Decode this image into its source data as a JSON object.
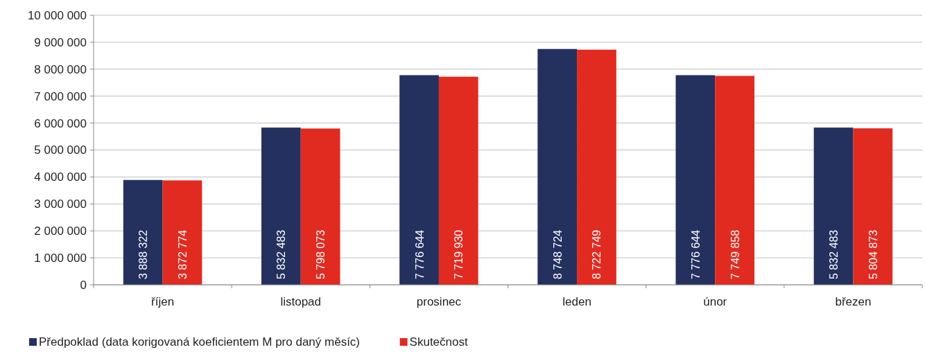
{
  "chart_data": {
    "type": "bar",
    "categories": [
      "říjen",
      "listopad",
      "prosinec",
      "leden",
      "únor",
      "březen"
    ],
    "series": [
      {
        "name": "Předpoklad (data korigovaná koeficientem M pro daný měsíc)",
        "color": "#24305e",
        "values": [
          3888322,
          5832483,
          7776644,
          8748724,
          7776644,
          5832483
        ]
      },
      {
        "name": "Skutečnost",
        "color": "#e12b21",
        "values": [
          3872774,
          5798073,
          7719930,
          8722749,
          7749858,
          5804873
        ]
      }
    ],
    "ylim": [
      0,
      10000000
    ],
    "yticks": [
      {
        "value": 0,
        "label": "0"
      },
      {
        "value": 1000000,
        "label": "1 000 000"
      },
      {
        "value": 2000000,
        "label": "2 000 000"
      },
      {
        "value": 3000000,
        "label": "3 000 000"
      },
      {
        "value": 4000000,
        "label": "4 000 000"
      },
      {
        "value": 5000000,
        "label": "5 000 000"
      },
      {
        "value": 6000000,
        "label": "6 000 000"
      },
      {
        "value": 7000000,
        "label": "7 000 000"
      },
      {
        "value": 8000000,
        "label": "8 000 000"
      },
      {
        "value": 9000000,
        "label": "9 000 000"
      },
      {
        "value": 10000000,
        "label": "10 000 000"
      }
    ],
    "grid": "y",
    "legend": "bottom left",
    "data_labels": true
  }
}
